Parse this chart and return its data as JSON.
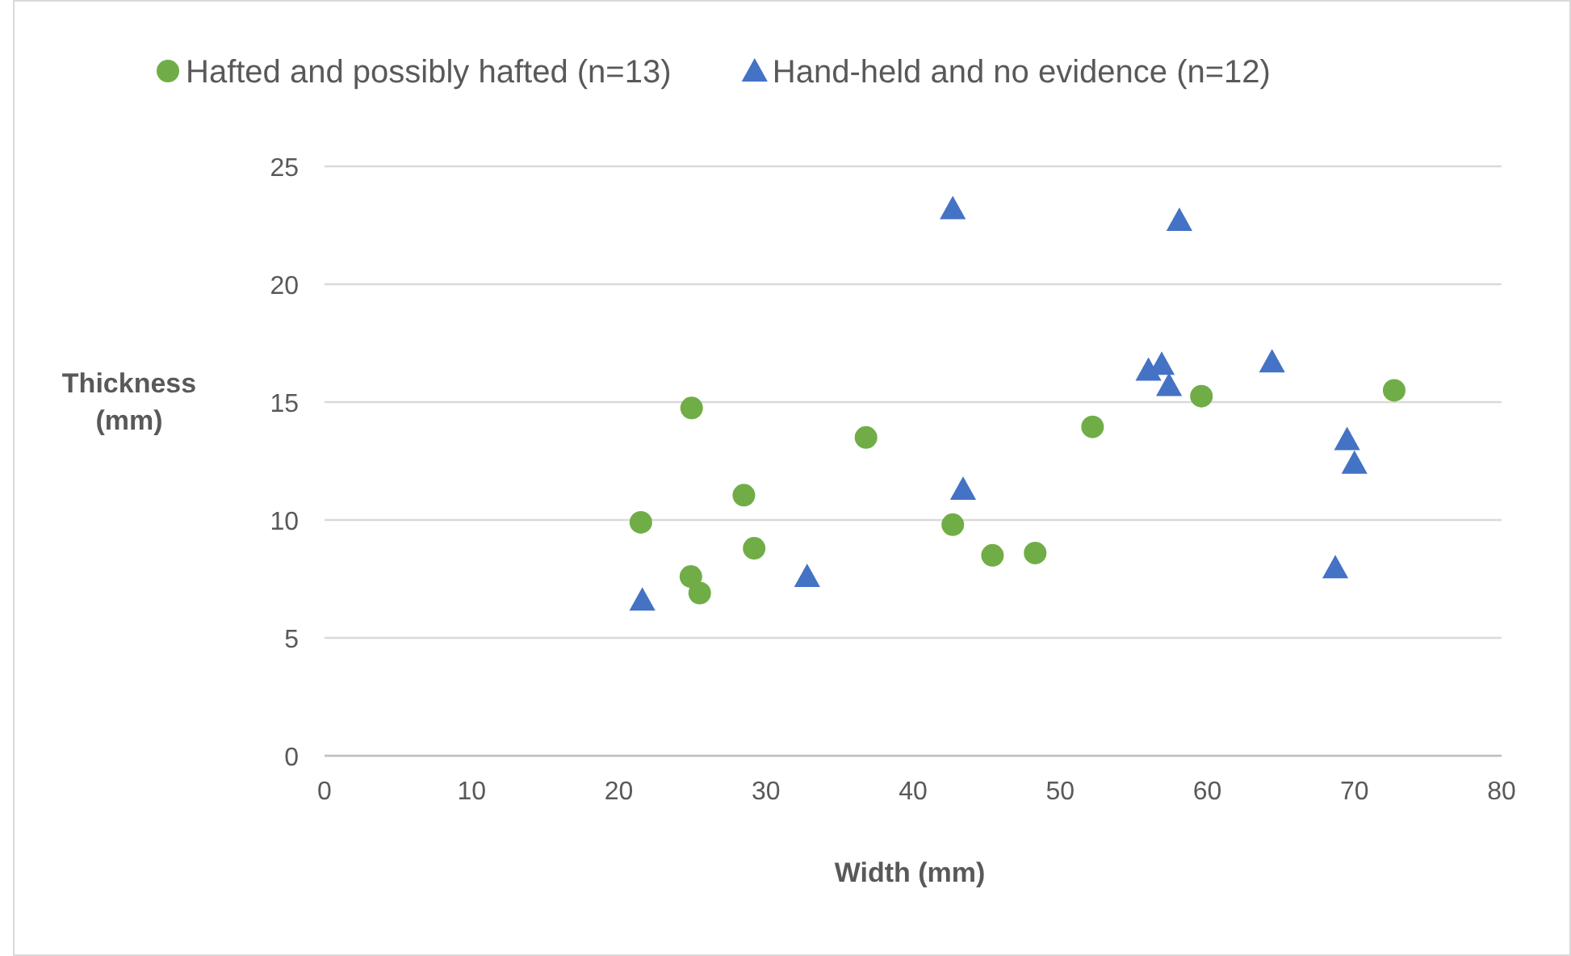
{
  "chart_data": {
    "type": "scatter",
    "xlabel": "Width (mm)",
    "ylabel": "Thickness (mm)",
    "xlim": [
      0,
      80
    ],
    "xticks": [
      0,
      10,
      20,
      30,
      40,
      50,
      60,
      70,
      80
    ],
    "ylim": [
      0,
      25
    ],
    "yticks": [
      0,
      5,
      10,
      15,
      20,
      25
    ],
    "grid": "y",
    "legend": "top",
    "series": [
      {
        "name": "Hafted and possibly hafted (n=13)",
        "color": "#70ad47",
        "marker": "circle",
        "x": [
          21.5,
          24.95,
          24.9,
          25.5,
          28.5,
          29.2,
          36.8,
          42.7,
          45.4,
          48.3,
          52.2,
          59.6,
          72.7
        ],
        "values": [
          9.9,
          14.75,
          7.6,
          6.9,
          11.05,
          8.8,
          13.5,
          9.8,
          8.5,
          8.6,
          13.95,
          15.25,
          15.5
        ]
      },
      {
        "name": "Hand-held and no evidence (n=12)",
        "color": "#4472c4",
        "marker": "triangle",
        "x": [
          58.1,
          56.0,
          56.9,
          57.4,
          64.4,
          69.5,
          70.0,
          68.7,
          42.7,
          43.4,
          32.8,
          21.6
        ],
        "values": [
          22.7,
          16.35,
          16.6,
          15.7,
          16.7,
          13.4,
          12.4,
          7.97,
          23.2,
          11.3,
          7.6,
          6.6
        ]
      }
    ]
  }
}
